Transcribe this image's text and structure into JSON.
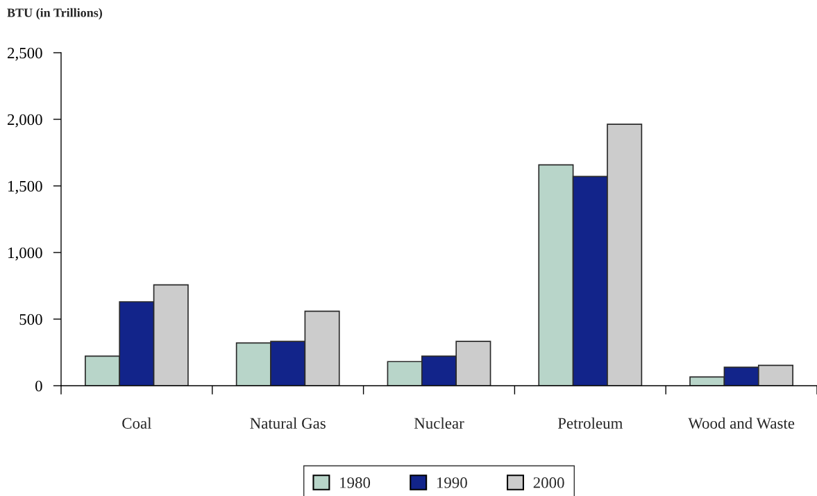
{
  "chart_data": {
    "type": "bar",
    "ylabel": "BTU (in Trillions)",
    "categories": [
      "Coal",
      "Natural Gas",
      "Nuclear",
      "Petroleum",
      "Wood and Waste"
    ],
    "series": [
      {
        "name": "1980",
        "color": "#b8d5c9",
        "values": [
          222,
          321,
          181,
          1658,
          66
        ]
      },
      {
        "name": "1990",
        "color": "#12248a",
        "values": [
          630,
          333,
          222,
          1571,
          139
        ]
      },
      {
        "name": "2000",
        "color": "#cccccc",
        "values": [
          757,
          559,
          333,
          1963,
          153
        ]
      }
    ],
    "ylim": [
      0,
      2500
    ],
    "yticks": [
      0,
      500,
      {
        "value": 1000,
        "label": "1,000"
      },
      {
        "value": 1500,
        "label": "1,500"
      },
      {
        "value": 2000,
        "label": "2,000"
      },
      {
        "value": 2500,
        "label": "2,500"
      }
    ],
    "legend": "bottom"
  }
}
